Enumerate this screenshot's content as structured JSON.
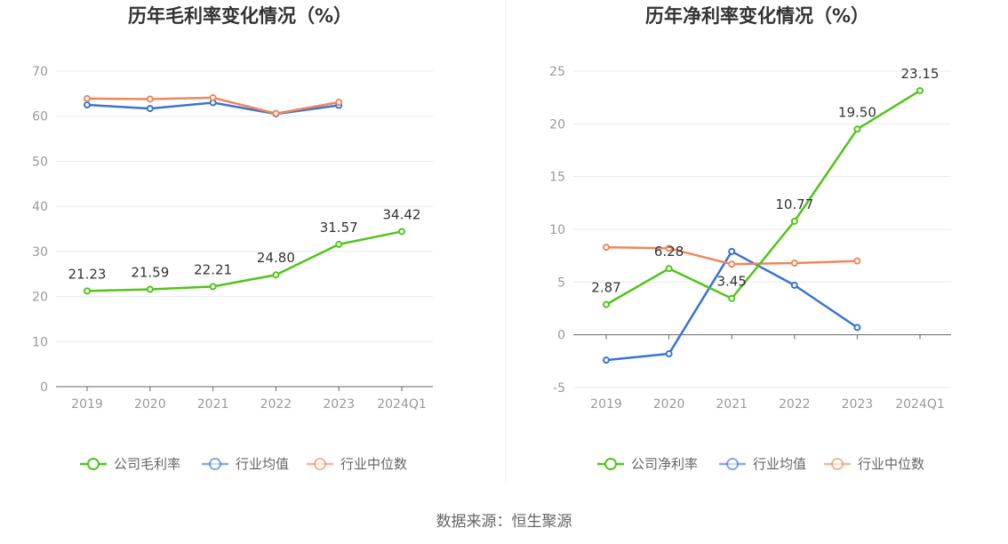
{
  "source": "数据来源：恒生聚源",
  "colors": {
    "company": "#52c41a",
    "industry_avg": "#3a72d8",
    "industry_median": "#f0865a",
    "grid": "#e6e9ef",
    "axis": "#666666",
    "divider": "#eeeeee"
  },
  "chart_data": [
    {
      "type": "line",
      "title": "历年毛利率变化情况（%）",
      "categories": [
        "2019",
        "2020",
        "2021",
        "2022",
        "2023",
        "2024Q1"
      ],
      "ylim": [
        0,
        70
      ],
      "yticks": [
        0,
        10,
        20,
        30,
        40,
        50,
        60,
        70
      ],
      "grid": true,
      "legend_position": "bottom",
      "series": [
        {
          "name": "公司毛利率",
          "key": "company",
          "values": [
            21.23,
            21.59,
            22.21,
            24.8,
            31.57,
            34.42
          ],
          "labels": [
            "21.23",
            "21.59",
            "22.21",
            "24.80",
            "31.57",
            "34.42"
          ]
        },
        {
          "name": "行业均值",
          "key": "industry_avg",
          "values": [
            62.5,
            61.7,
            63.0,
            60.5,
            62.4,
            null
          ]
        },
        {
          "name": "行业中位数",
          "key": "industry_median",
          "values": [
            63.9,
            63.8,
            64.1,
            60.6,
            63.1,
            null
          ]
        }
      ]
    },
    {
      "type": "line",
      "title": "历年净利率变化情况（%）",
      "categories": [
        "2019",
        "2020",
        "2021",
        "2022",
        "2023",
        "2024Q1"
      ],
      "ylim": [
        -5,
        25
      ],
      "yticks": [
        -5,
        0,
        5,
        10,
        15,
        20,
        25
      ],
      "grid": true,
      "legend_position": "bottom",
      "series": [
        {
          "name": "公司净利率",
          "key": "company",
          "values": [
            2.87,
            6.28,
            3.45,
            10.77,
            19.5,
            23.15
          ],
          "labels": [
            "2.87",
            "6.28",
            "3.45",
            "10.77",
            "19.50",
            "23.15"
          ]
        },
        {
          "name": "行业均值",
          "key": "industry_avg",
          "values": [
            -2.4,
            -1.8,
            7.9,
            4.7,
            0.7,
            null
          ]
        },
        {
          "name": "行业中位数",
          "key": "industry_median",
          "values": [
            8.3,
            8.2,
            6.7,
            6.8,
            7.0,
            null
          ]
        }
      ]
    }
  ]
}
